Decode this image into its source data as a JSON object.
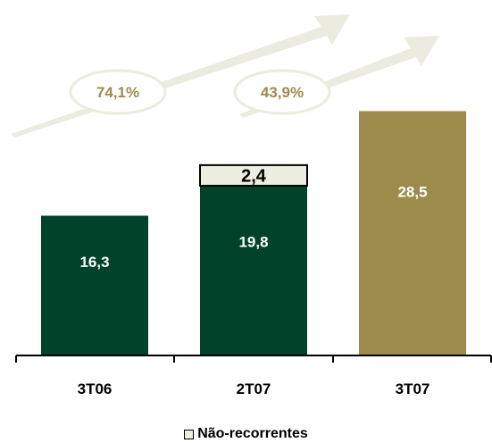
{
  "chart_data": {
    "type": "bar",
    "stacked": true,
    "categories": [
      "3T06",
      "2T07",
      "3T07"
    ],
    "series": [
      {
        "name": "",
        "values": [
          16.3,
          19.8,
          28.5
        ],
        "labels": [
          "16,3",
          "19,8",
          "28,5"
        ]
      },
      {
        "name": "Não-recorrentes",
        "values": [
          0,
          2.4,
          0
        ],
        "labels": [
          "",
          "2,4",
          ""
        ]
      }
    ],
    "bar_colors": [
      "#00432a",
      "#00432a",
      "#9c8b4a"
    ],
    "nonrecurring_color": "#eeeee0",
    "ylim": [
      0,
      30
    ],
    "growth_annotations": [
      {
        "label": "74,1%",
        "from": "3T06",
        "to": "3T07"
      },
      {
        "label": "43,9%",
        "from": "2T07",
        "to": "3T07"
      }
    ],
    "annotation_text_color": "#9c8b4a",
    "arrow_color": "#ecebdf",
    "legend": {
      "label": "Não-recorrentes",
      "position": "bottom"
    },
    "xlabel": "",
    "ylabel": ""
  }
}
